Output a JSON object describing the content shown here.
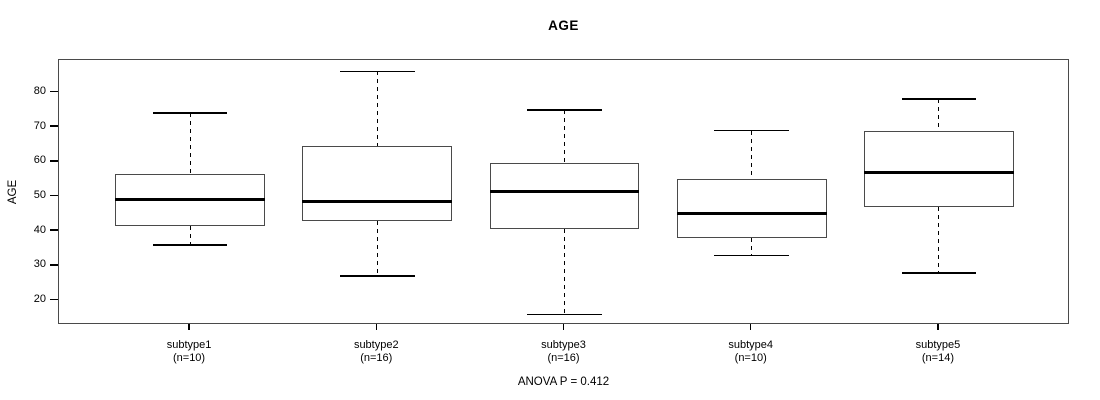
{
  "figure": {
    "title": "AGE",
    "footer": "ANOVA P = 0.412",
    "foreground_color": "#000000",
    "frame_color": "#4a4a4a",
    "background_color": "#ffffff"
  },
  "chart_data": {
    "type": "boxplot",
    "title": "AGE",
    "xlabel": "",
    "ylabel": "AGE",
    "annotation": "ANOVA P = 0.412",
    "grid": false,
    "legend": false,
    "yticks": [
      20,
      30,
      40,
      50,
      60,
      70,
      80
    ],
    "ylim": [
      13,
      89.3
    ],
    "categories": [
      "subtype1",
      "subtype2",
      "subtype3",
      "subtype4",
      "subtype5"
    ],
    "category_sublabels": [
      "(n=10)",
      "(n=16)",
      "(n=16)",
      "(n=10)",
      "(n=14)"
    ],
    "series": [
      {
        "name": "subtype1",
        "n": 10,
        "whisker_low": 36,
        "q1": 41.5,
        "median": 49,
        "q3": 56.5,
        "whisker_high": 74,
        "outliers": []
      },
      {
        "name": "subtype2",
        "n": 16,
        "whisker_low": 27,
        "q1": 43,
        "median": 48.5,
        "q3": 64.5,
        "whisker_high": 86,
        "outliers": []
      },
      {
        "name": "subtype3",
        "n": 16,
        "whisker_low": 16,
        "q1": 40.5,
        "median": 51.5,
        "q3": 59.5,
        "whisker_high": 75,
        "outliers": []
      },
      {
        "name": "subtype4",
        "n": 10,
        "whisker_low": 33,
        "q1": 38,
        "median": 45,
        "q3": 55,
        "whisker_high": 69,
        "outliers": []
      },
      {
        "name": "subtype5",
        "n": 14,
        "whisker_low": 28,
        "q1": 47,
        "median": 57,
        "q3": 69,
        "whisker_high": 78,
        "outliers": []
      }
    ]
  }
}
